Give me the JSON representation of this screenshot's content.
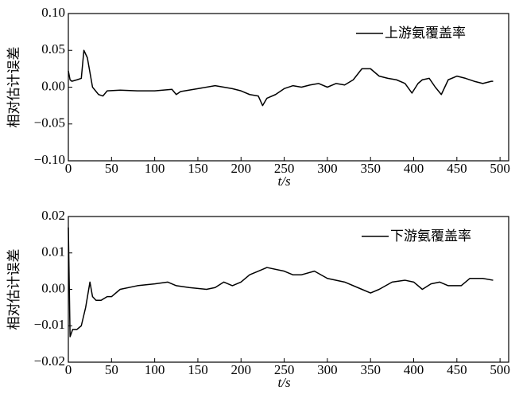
{
  "chart_data": [
    {
      "type": "line",
      "xlabel": "t/s",
      "ylabel": "相对估计误差",
      "xlim": [
        0,
        510
      ],
      "ylim": [
        -0.1,
        0.1
      ],
      "xticks": [
        0,
        50,
        100,
        150,
        200,
        250,
        300,
        350,
        400,
        450,
        500
      ],
      "yticks": [
        {
          "value": 0.1,
          "label": "0.10"
        },
        {
          "value": 0.05,
          "label": "0.05"
        },
        {
          "value": 0,
          "label": "0.00"
        },
        {
          "value": -0.05,
          "label": "−0.05"
        },
        {
          "value": -0.1,
          "label": "−0.10"
        }
      ],
      "legend": "upper right",
      "series": [
        {
          "name": "上游氨覆盖率",
          "color": "#000000",
          "x": [
            0,
            2,
            4,
            10,
            15,
            18,
            22,
            28,
            35,
            40,
            45,
            60,
            80,
            100,
            120,
            125,
            130,
            150,
            170,
            190,
            200,
            210,
            220,
            225,
            230,
            240,
            250,
            260,
            270,
            280,
            290,
            300,
            310,
            320,
            330,
            340,
            350,
            360,
            370,
            380,
            390,
            398,
            405,
            410,
            418,
            425,
            432,
            440,
            450,
            460,
            470,
            480,
            490,
            492
          ],
          "values": [
            0.022,
            0.01,
            0.008,
            0.01,
            0.012,
            0.05,
            0.04,
            0.0,
            -0.01,
            -0.012,
            -0.005,
            -0.004,
            -0.005,
            -0.005,
            -0.003,
            -0.01,
            -0.006,
            -0.002,
            0.002,
            -0.002,
            -0.005,
            -0.01,
            -0.012,
            -0.025,
            -0.015,
            -0.01,
            -0.002,
            0.002,
            0.0,
            0.003,
            0.005,
            0.0,
            0.005,
            0.003,
            0.01,
            0.025,
            0.025,
            0.015,
            0.012,
            0.01,
            0.005,
            -0.008,
            0.005,
            0.01,
            0.012,
            0.0,
            -0.01,
            0.01,
            0.015,
            0.012,
            0.008,
            0.005,
            0.008,
            0.008
          ]
        }
      ]
    },
    {
      "type": "line",
      "xlabel": "t/s",
      "ylabel": "相对估计误差",
      "xlim": [
        0,
        510
      ],
      "ylim": [
        -0.02,
        0.02
      ],
      "xticks": [
        0,
        50,
        100,
        150,
        200,
        250,
        300,
        350,
        400,
        450,
        500
      ],
      "yticks": [
        {
          "value": 0.02,
          "label": "0.02"
        },
        {
          "value": 0.01,
          "label": "0.01"
        },
        {
          "value": 0,
          "label": "0.00"
        },
        {
          "value": -0.01,
          "label": "−0.01"
        },
        {
          "value": -0.02,
          "label": "−0.02"
        }
      ],
      "legend": "upper right",
      "series": [
        {
          "name": "下游氨覆盖率",
          "color": "#000000",
          "x": [
            0,
            2,
            5,
            10,
            15,
            20,
            25,
            28,
            32,
            38,
            45,
            50,
            60,
            80,
            100,
            115,
            125,
            140,
            160,
            170,
            180,
            190,
            200,
            210,
            220,
            230,
            250,
            260,
            270,
            285,
            300,
            320,
            340,
            350,
            360,
            375,
            390,
            400,
            410,
            420,
            430,
            440,
            455,
            465,
            480,
            492
          ],
          "values": [
            0.017,
            -0.013,
            -0.011,
            -0.011,
            -0.01,
            -0.005,
            0.002,
            -0.002,
            -0.003,
            -0.003,
            -0.002,
            -0.002,
            0.0,
            0.001,
            0.0015,
            0.002,
            0.001,
            0.0005,
            0.0,
            0.0005,
            0.002,
            0.001,
            0.002,
            0.004,
            0.005,
            0.006,
            0.005,
            0.004,
            0.004,
            0.005,
            0.003,
            0.002,
            0.0,
            -0.001,
            0.0,
            0.002,
            0.0025,
            0.002,
            0.0,
            0.0015,
            0.002,
            0.001,
            0.001,
            0.003,
            0.003,
            0.0025
          ]
        }
      ]
    }
  ]
}
